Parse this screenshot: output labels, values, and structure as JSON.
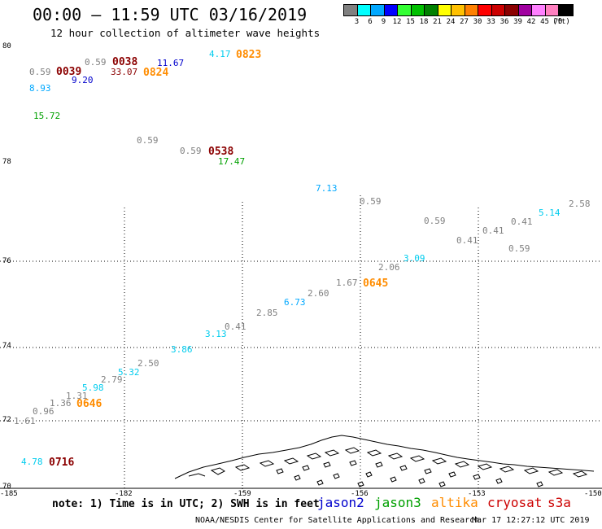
{
  "title": "00:00 – 11:59 UTC 03/16/2019",
  "subtitle": "12 hour collection of altimeter wave heights",
  "legend": {
    "colors": [
      "#808080",
      "#00ffff",
      "#00a8ff",
      "#0000ff",
      "#33ff33",
      "#00c000",
      "#008000",
      "#ffff00",
      "#ffc000",
      "#ff8000",
      "#ff0000",
      "#cc0000",
      "#8b0000",
      "#a000a0",
      "#ff80ff",
      "#ff80c0",
      "#000000"
    ],
    "ticks": [
      "3",
      "6",
      "9",
      "12",
      "15",
      "18",
      "21",
      "24",
      "27",
      "30",
      "33",
      "36",
      "39",
      "42",
      "45",
      "70",
      "(ft)"
    ]
  },
  "map": {
    "y_labels": [
      "80",
      "78",
      "76",
      "74",
      "72",
      "70"
    ],
    "x_labels": [
      "-185",
      "-182",
      "-159",
      "-156",
      "-153",
      "-150"
    ],
    "observations": [
      {
        "text": "0.59",
        "color": "#808080"
      },
      {
        "text": "0039",
        "color": "#8b0000"
      },
      {
        "text": "9.20",
        "color": "#0000cc"
      },
      {
        "text": "0.59",
        "color": "#808080"
      },
      {
        "text": "0038",
        "color": "#8b0000"
      },
      {
        "text": "33.07",
        "color": "#8b0000"
      },
      {
        "text": "11.67",
        "color": "#0000cc"
      },
      {
        "text": "0824",
        "color": "#ff8c00"
      },
      {
        "text": "4.17",
        "color": "#00ccee"
      },
      {
        "text": "0823",
        "color": "#ff8c00"
      },
      {
        "text": "8.93",
        "color": "#00a8ff"
      },
      {
        "text": "15.72",
        "color": "#00a000"
      },
      {
        "text": "0.59",
        "color": "#808080"
      },
      {
        "text": "0.59",
        "color": "#808080"
      },
      {
        "text": "0538",
        "color": "#8b0000"
      },
      {
        "text": "17.47",
        "color": "#00a000"
      },
      {
        "text": "7.13",
        "color": "#00a8ff"
      },
      {
        "text": "0.59",
        "color": "#808080"
      },
      {
        "text": "0.59",
        "color": "#808080"
      },
      {
        "text": "0.41",
        "color": "#808080"
      },
      {
        "text": "0.41",
        "color": "#808080"
      },
      {
        "text": "0.41",
        "color": "#808080"
      },
      {
        "text": "5.14",
        "color": "#00ccee"
      },
      {
        "text": "2.58",
        "color": "#808080"
      },
      {
        "text": "0.59",
        "color": "#808080"
      },
      {
        "text": "3.09",
        "color": "#00ccee"
      },
      {
        "text": "2.06",
        "color": "#808080"
      },
      {
        "text": "1.67",
        "color": "#808080"
      },
      {
        "text": "0645",
        "color": "#ff8c00"
      },
      {
        "text": "2.60",
        "color": "#808080"
      },
      {
        "text": "6.73",
        "color": "#00a8ff"
      },
      {
        "text": "2.85",
        "color": "#808080"
      },
      {
        "text": "0.41",
        "color": "#808080"
      },
      {
        "text": "3.13",
        "color": "#00ccee"
      },
      {
        "text": "3.86",
        "color": "#00ccee"
      },
      {
        "text": "2.50",
        "color": "#808080"
      },
      {
        "text": "5.32",
        "color": "#00ccee"
      },
      {
        "text": "2.79",
        "color": "#808080"
      },
      {
        "text": "5.98",
        "color": "#00ccee"
      },
      {
        "text": "1.31",
        "color": "#808080"
      },
      {
        "text": "1.36",
        "color": "#808080"
      },
      {
        "text": "0646",
        "color": "#ff8c00"
      },
      {
        "text": "0.96",
        "color": "#808080"
      },
      {
        "text": "1.61",
        "color": "#808080"
      },
      {
        "text": "4.78",
        "color": "#00ccee"
      },
      {
        "text": "0716",
        "color": "#8b0000"
      }
    ]
  },
  "footer": {
    "note": "note: 1) Time is in UTC; 2) SWH is in feet",
    "satellites": [
      {
        "name": "jason2",
        "color": "#0000cc"
      },
      {
        "name": "jason3",
        "color": "#00a000"
      },
      {
        "name": "altika",
        "color": "#ff8c00"
      },
      {
        "name": "cryosat",
        "color": "#cc0000"
      },
      {
        "name": "s3a",
        "color": "#cc0000"
      }
    ],
    "credit": "NOAA/NESDIS Center for Satellite Applications and Research",
    "generated": "Mar 17 12:27:12 UTC 2019"
  }
}
